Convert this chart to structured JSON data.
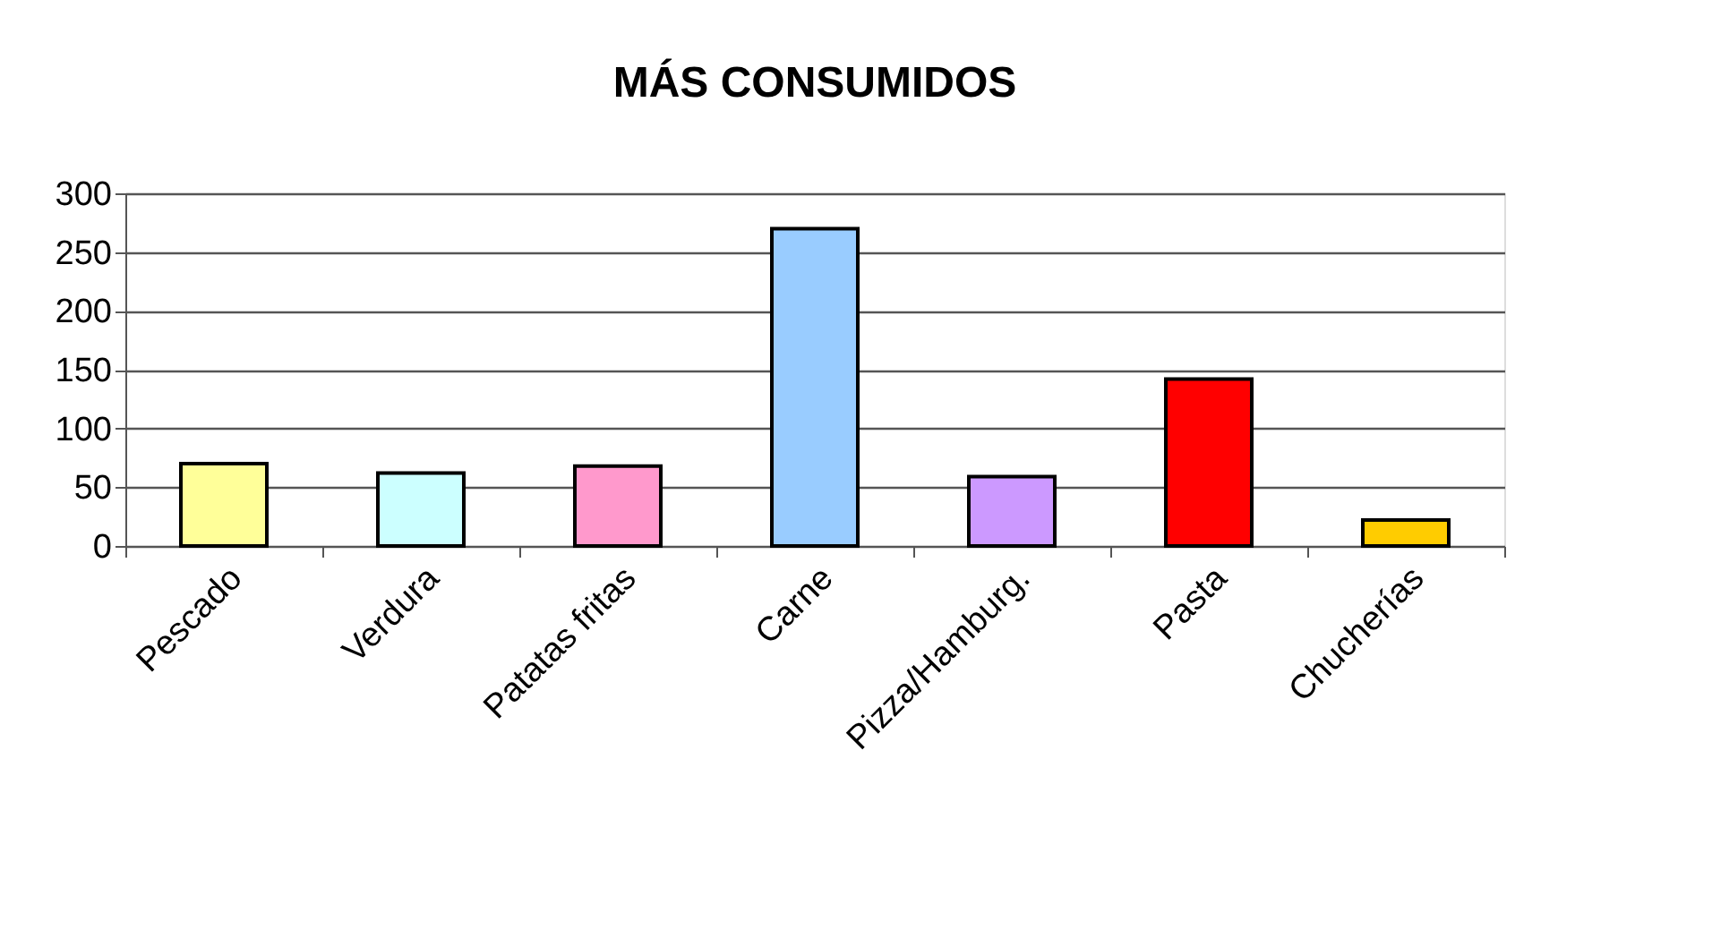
{
  "chart_data": {
    "type": "bar",
    "title": "MÁS CONSUMIDOS",
    "categories": [
      "Pescado",
      "Verdura",
      "Patatas fritas",
      "Carne",
      "Pizza/Hamburg.",
      "Pasta",
      "Chucherías"
    ],
    "values": [
      70,
      62,
      68,
      270,
      59,
      142,
      22
    ],
    "colors": [
      "#ffff99",
      "#ccffff",
      "#ff99cc",
      "#99ccff",
      "#cc99ff",
      "#ff0000",
      "#ffcc00"
    ],
    "ylim": [
      0,
      300
    ],
    "yticks": [
      0,
      50,
      100,
      150,
      200,
      250,
      300
    ],
    "grid": "y"
  }
}
